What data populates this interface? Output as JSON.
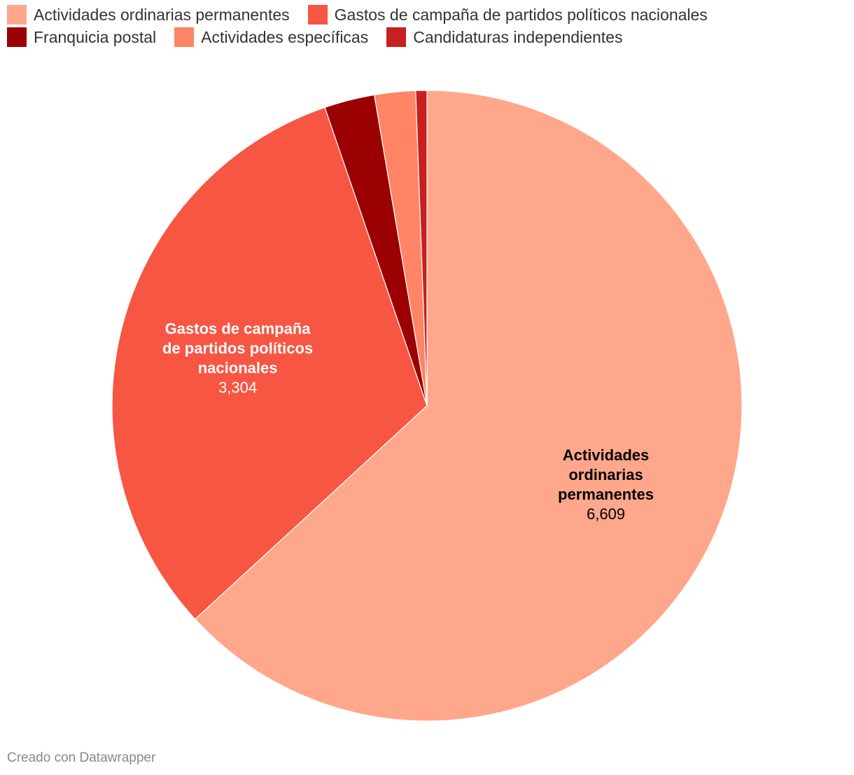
{
  "chart_data": {
    "type": "pie",
    "categories": [
      "Actividades ordinarias permanentes",
      "Gastos de campaña de partidos políticos nacionales",
      "Franquicia postal",
      "Actividades específicas",
      "Candidaturas independientes"
    ],
    "values": [
      6609,
      3304,
      270,
      220,
      60
    ],
    "value_labels": [
      "6,609",
      "3,304",
      "",
      "",
      ""
    ],
    "slice_labels": [
      [
        "Actividades",
        "ordinarias",
        "permanentes"
      ],
      [
        "Gastos de campaña",
        "de partidos políticos",
        "nacionales"
      ],
      [],
      [],
      []
    ],
    "colors": [
      "#ffa78b",
      "#f75643",
      "#9b0002",
      "#ff8566",
      "#c8201f"
    ],
    "label_colors": [
      "#000000",
      "#ffffff",
      "#ffffff",
      "#ffffff",
      "#ffffff"
    ],
    "legend_position": "top-left",
    "start_angle": "top, clockwise"
  },
  "legend": {
    "items": [
      {
        "label": "Actividades ordinarias permanentes",
        "color": "#ffa78b"
      },
      {
        "label": "Gastos de campaña de partidos políticos nacionales",
        "color": "#f75643"
      },
      {
        "label": "Franquicia postal",
        "color": "#9b0002"
      },
      {
        "label": "Actividades específicas",
        "color": "#ff8566"
      },
      {
        "label": "Candidaturas independientes",
        "color": "#c8201f"
      }
    ]
  },
  "footer": {
    "credit": "Creado con Datawrapper"
  }
}
